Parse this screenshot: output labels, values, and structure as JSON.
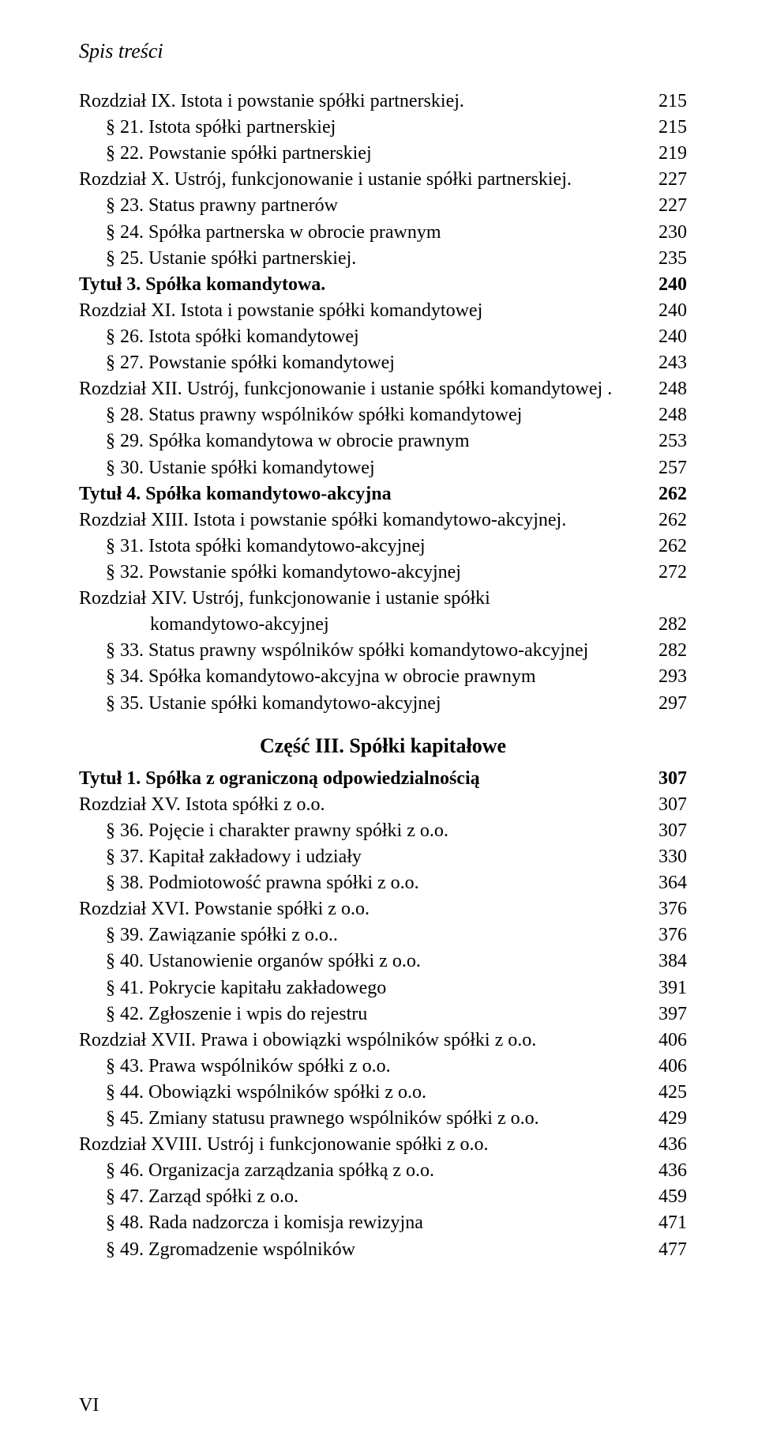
{
  "header": {
    "title": "Spis treści"
  },
  "folio": "VI",
  "part_heading": "Część III. Spółki kapitałowe",
  "toc": [
    {
      "text": "Rozdział IX. Istota i powstanie spółki partnerskiej.",
      "page": "215",
      "indent": 0,
      "bold": false
    },
    {
      "text": "§ 21. Istota spółki partnerskiej",
      "page": "215",
      "indent": 1,
      "bold": false
    },
    {
      "text": "§ 22. Powstanie spółki partnerskiej",
      "page": "219",
      "indent": 1,
      "bold": false
    },
    {
      "text": "Rozdział X. Ustrój, funkcjonowanie i ustanie spółki partnerskiej.",
      "page": "227",
      "indent": 0,
      "bold": false
    },
    {
      "text": "§ 23. Status prawny partnerów",
      "page": "227",
      "indent": 1,
      "bold": false
    },
    {
      "text": "§ 24. Spółka partnerska w obrocie prawnym",
      "page": "230",
      "indent": 1,
      "bold": false
    },
    {
      "text": "§ 25. Ustanie spółki partnerskiej.",
      "page": "235",
      "indent": 1,
      "bold": false
    },
    {
      "text": "Tytuł 3. Spółka komandytowa.",
      "page": "240",
      "indent": 0,
      "bold": true
    },
    {
      "text": "Rozdział XI. Istota i powstanie spółki komandytowej",
      "page": "240",
      "indent": 0,
      "bold": false
    },
    {
      "text": "§ 26. Istota spółki komandytowej",
      "page": "240",
      "indent": 1,
      "bold": false
    },
    {
      "text": "§ 27. Powstanie spółki komandytowej",
      "page": "243",
      "indent": 1,
      "bold": false
    },
    {
      "text": "Rozdział XII. Ustrój, funkcjonowanie i ustanie spółki komandytowej .",
      "page": "248",
      "indent": 0,
      "bold": false
    },
    {
      "text": "§ 28. Status prawny wspólników spółki komandytowej",
      "page": "248",
      "indent": 1,
      "bold": false
    },
    {
      "text": "§ 29. Spółka komandytowa w obrocie prawnym",
      "page": "253",
      "indent": 1,
      "bold": false
    },
    {
      "text": "§ 30. Ustanie spółki komandytowej",
      "page": "257",
      "indent": 1,
      "bold": false
    },
    {
      "text": "Tytuł 4. Spółka komandytowo-akcyjna",
      "page": "262",
      "indent": 0,
      "bold": true
    },
    {
      "text": "Rozdział XIII. Istota i powstanie spółki komandytowo-akcyjnej.",
      "page": "262",
      "indent": 0,
      "bold": false
    },
    {
      "text": "§ 31. Istota spółki komandytowo-akcyjnej",
      "page": "262",
      "indent": 1,
      "bold": false
    },
    {
      "text": "§ 32. Powstanie spółki komandytowo-akcyjnej",
      "page": "272",
      "indent": 1,
      "bold": false
    },
    {
      "text": "Rozdział XIV. Ustrój, funkcjonowanie i ustanie spółki",
      "page": "",
      "indent": 0,
      "bold": false,
      "noDots": true
    },
    {
      "text": "komandytowo-akcyjnej",
      "page": "282",
      "indent": 2,
      "bold": false
    },
    {
      "text": "§ 33. Status prawny wspólników spółki komandytowo-akcyjnej",
      "page": "282",
      "indent": 1,
      "bold": false
    },
    {
      "text": "§ 34. Spółka komandytowo-akcyjna w obrocie prawnym",
      "page": "293",
      "indent": 1,
      "bold": false
    },
    {
      "text": "§ 35. Ustanie spółki komandytowo-akcyjnej",
      "page": "297",
      "indent": 1,
      "bold": false
    }
  ],
  "toc2": [
    {
      "text": "Tytuł 1. Spółka z ograniczoną odpowiedzialnością",
      "page": "307",
      "indent": 0,
      "bold": true
    },
    {
      "text": "Rozdział XV. Istota spółki z o.o.",
      "page": "307",
      "indent": 0,
      "bold": false
    },
    {
      "text": "§ 36. Pojęcie i charakter prawny spółki z o.o.",
      "page": "307",
      "indent": 1,
      "bold": false
    },
    {
      "text": "§ 37. Kapitał zakładowy i udziały",
      "page": "330",
      "indent": 1,
      "bold": false
    },
    {
      "text": "§ 38. Podmiotowość prawna spółki z o.o.",
      "page": "364",
      "indent": 1,
      "bold": false
    },
    {
      "text": "Rozdział XVI. Powstanie spółki z o.o.",
      "page": "376",
      "indent": 0,
      "bold": false
    },
    {
      "text": "§ 39. Zawiązanie spółki z o.o..",
      "page": "376",
      "indent": 1,
      "bold": false
    },
    {
      "text": "§ 40. Ustanowienie organów spółki z o.o.",
      "page": "384",
      "indent": 1,
      "bold": false
    },
    {
      "text": "§ 41. Pokrycie kapitału zakładowego",
      "page": "391",
      "indent": 1,
      "bold": false
    },
    {
      "text": "§ 42. Zgłoszenie i wpis do rejestru",
      "page": "397",
      "indent": 1,
      "bold": false
    },
    {
      "text": "Rozdział XVII. Prawa i obowiązki wspólników spółki z o.o.",
      "page": "406",
      "indent": 0,
      "bold": false
    },
    {
      "text": "§ 43. Prawa wspólników spółki z o.o.",
      "page": "406",
      "indent": 1,
      "bold": false
    },
    {
      "text": "§ 44. Obowiązki wspólników spółki z o.o.",
      "page": "425",
      "indent": 1,
      "bold": false
    },
    {
      "text": "§ 45. Zmiany statusu prawnego wspólników spółki z o.o.",
      "page": "429",
      "indent": 1,
      "bold": false
    },
    {
      "text": "Rozdział XVIII. Ustrój i funkcjonowanie spółki z o.o.",
      "page": "436",
      "indent": 0,
      "bold": false
    },
    {
      "text": "§ 46. Organizacja zarządzania spółką z o.o.",
      "page": "436",
      "indent": 1,
      "bold": false
    },
    {
      "text": "§ 47. Zarząd spółki z o.o.",
      "page": "459",
      "indent": 1,
      "bold": false
    },
    {
      "text": "§ 48. Rada nadzorcza i komisja rewizyjna",
      "page": "471",
      "indent": 1,
      "bold": false
    },
    {
      "text": "§ 49. Zgromadzenie wspólników",
      "page": "477",
      "indent": 1,
      "bold": false
    }
  ]
}
